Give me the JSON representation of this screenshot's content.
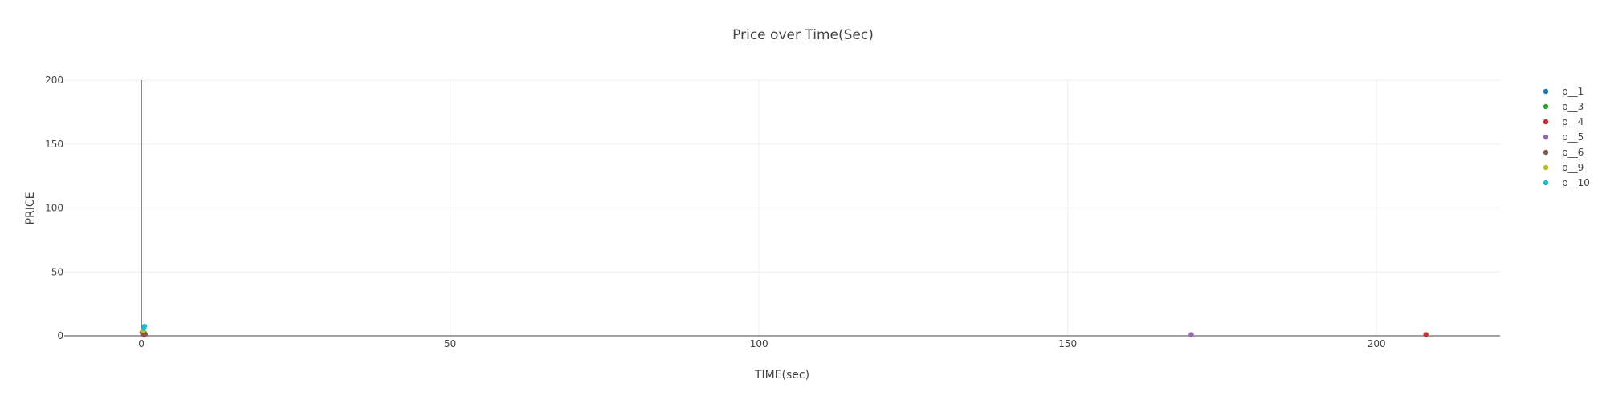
{
  "chart_data": {
    "type": "scatter",
    "title": "Price over Time(Sec)",
    "xlabel": "TIME(sec)",
    "ylabel": "PRICE",
    "xlim": [
      -12.5,
      220
    ],
    "ylim": [
      0,
      200
    ],
    "x_ticks": [
      0,
      50,
      100,
      150,
      200
    ],
    "y_ticks": [
      0,
      50,
      100,
      150,
      200
    ],
    "grid": true,
    "legend_position": "top-right",
    "series": [
      {
        "name": "p__1",
        "color": "#1f77b4",
        "points": [
          [
            0.2,
            2.0
          ],
          [
            0.4,
            1.5
          ]
        ]
      },
      {
        "name": "p__3",
        "color": "#2ca02c",
        "points": [
          [
            0.3,
            3.0
          ],
          [
            0.5,
            2.2
          ]
        ]
      },
      {
        "name": "p__4",
        "color": "#d62728",
        "points": [
          [
            0.4,
            1.0
          ],
          [
            208,
            1.0
          ]
        ]
      },
      {
        "name": "p__5",
        "color": "#9467bd",
        "points": [
          [
            170,
            1.0
          ]
        ]
      },
      {
        "name": "p__6",
        "color": "#8c564b",
        "points": [
          [
            0.1,
            2.5
          ],
          [
            0.6,
            1.2
          ]
        ]
      },
      {
        "name": "p__9",
        "color": "#bcbd22",
        "points": [
          [
            0.3,
            4.0
          ]
        ]
      },
      {
        "name": "p__10",
        "color": "#17becf",
        "points": [
          [
            0.5,
            7.5
          ],
          [
            0.4,
            6.0
          ]
        ]
      }
    ]
  }
}
